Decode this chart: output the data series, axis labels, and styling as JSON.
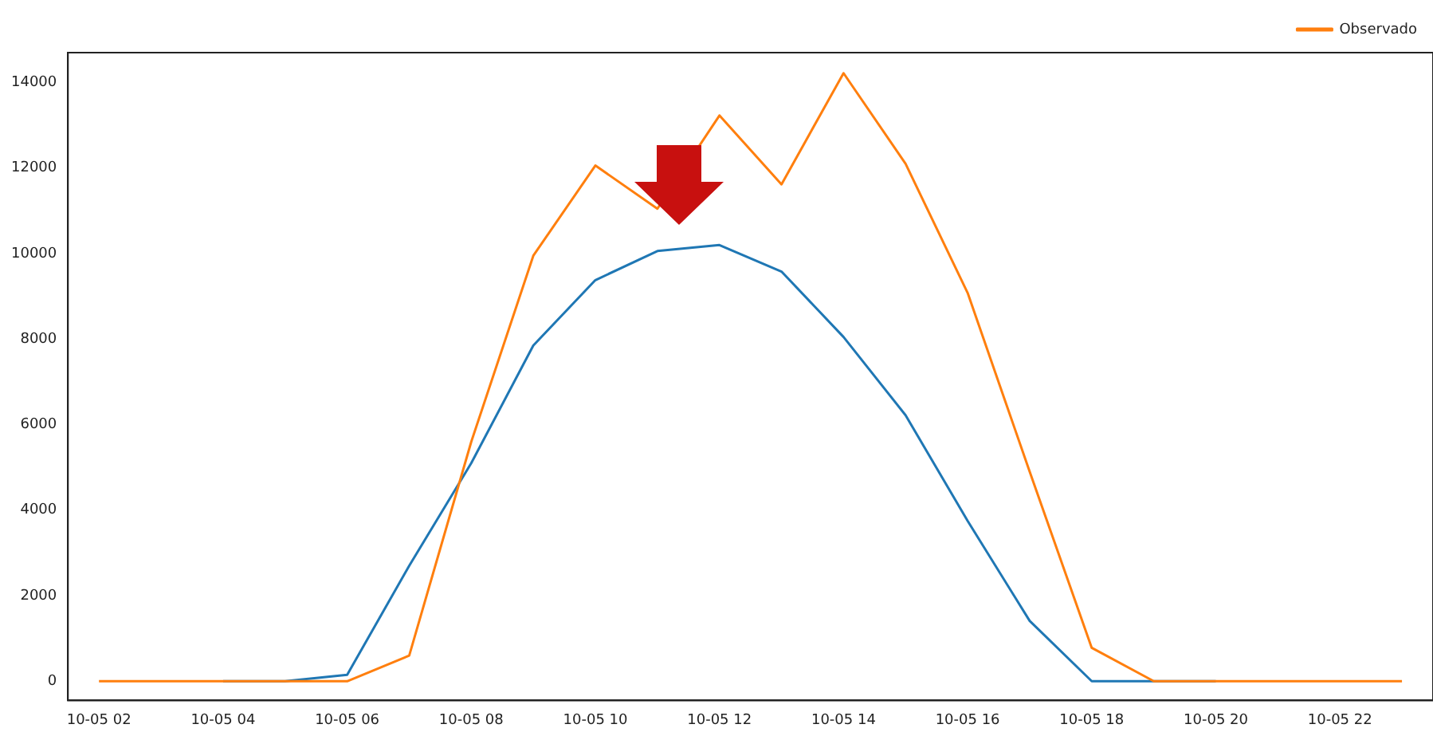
{
  "chart_data": {
    "type": "line",
    "categories": [
      "10-05 02",
      null,
      "10-05 04",
      null,
      "10-05 06",
      null,
      "10-05 08",
      null,
      "10-05 10",
      null,
      "10-05 12",
      null,
      "10-05 14",
      null,
      "10-05 16",
      null,
      "10-05 18",
      null,
      "10-05 20",
      null,
      "10-05 22",
      null
    ],
    "series": [
      {
        "color": "#1f77b4",
        "values": [
          null,
          null,
          0,
          0,
          150,
          2700,
          5100,
          7850,
          9380,
          10060,
          10200,
          9580,
          8050,
          6220,
          3750,
          1410,
          0,
          0,
          0,
          null,
          null,
          null
        ]
      },
      {
        "name": "Observado",
        "color": "#ff7f0e",
        "values": [
          0,
          0,
          0,
          0,
          0,
          600,
          5600,
          9950,
          12060,
          11050,
          13230,
          11620,
          14220,
          12100,
          9080,
          4900,
          780,
          0,
          0,
          0,
          0,
          0
        ]
      }
    ],
    "ylim": [
      -450,
      14700
    ],
    "yticks": [
      0,
      2000,
      4000,
      6000,
      8000,
      10000,
      12000,
      14000
    ],
    "grid": false,
    "legend": "top right",
    "marker": "none",
    "line_style": "solid"
  }
}
